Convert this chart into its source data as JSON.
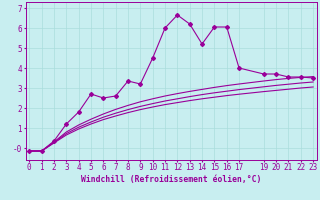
{
  "xlabel": "Windchill (Refroidissement éolien,°C)",
  "bg_color": "#c8eef0",
  "line_color": "#990099",
  "xlim": [
    -0.3,
    23.3
  ],
  "ylim": [
    -0.6,
    7.3
  ],
  "yticks": [
    0,
    1,
    2,
    3,
    4,
    5,
    6,
    7
  ],
  "ytick_labels": [
    "-0",
    "1",
    "2",
    "3",
    "4",
    "5",
    "6",
    "7"
  ],
  "xticks": [
    0,
    1,
    2,
    3,
    4,
    5,
    6,
    7,
    8,
    9,
    10,
    11,
    12,
    13,
    14,
    15,
    16,
    17,
    19,
    20,
    21,
    22,
    23
  ],
  "marked_line_x": [
    0,
    1,
    2,
    3,
    4,
    5,
    6,
    7,
    8,
    9,
    10,
    11,
    12,
    13,
    14,
    15,
    16,
    17,
    19,
    20,
    21,
    22,
    23
  ],
  "marked_line_y": [
    -0.15,
    -0.15,
    0.35,
    1.2,
    1.8,
    2.7,
    2.5,
    2.6,
    3.35,
    3.2,
    4.5,
    6.0,
    6.65,
    6.2,
    5.2,
    6.05,
    6.05,
    4.0,
    3.7,
    3.7,
    3.55,
    3.55,
    3.5
  ],
  "smooth_line1_x": [
    0,
    1,
    2,
    3,
    4,
    5,
    6,
    7,
    8,
    9,
    10,
    11,
    12,
    13,
    14,
    15,
    16,
    17,
    19,
    20,
    21,
    22,
    23
  ],
  "smooth_line1_y": [
    -0.15,
    -0.15,
    0.25,
    0.65,
    0.95,
    1.2,
    1.42,
    1.6,
    1.77,
    1.92,
    2.05,
    2.17,
    2.27,
    2.37,
    2.46,
    2.54,
    2.62,
    2.69,
    2.82,
    2.88,
    2.94,
    3.0,
    3.05
  ],
  "smooth_line2_x": [
    0,
    1,
    2,
    3,
    4,
    5,
    6,
    7,
    8,
    9,
    10,
    11,
    12,
    13,
    14,
    15,
    16,
    17,
    19,
    20,
    21,
    22,
    23
  ],
  "smooth_line2_y": [
    -0.15,
    -0.15,
    0.28,
    0.72,
    1.04,
    1.3,
    1.54,
    1.74,
    1.92,
    2.08,
    2.22,
    2.35,
    2.46,
    2.57,
    2.67,
    2.76,
    2.84,
    2.92,
    3.06,
    3.13,
    3.19,
    3.25,
    3.3
  ],
  "smooth_line3_x": [
    0,
    1,
    2,
    3,
    4,
    5,
    6,
    7,
    8,
    9,
    10,
    11,
    12,
    13,
    14,
    15,
    16,
    17,
    19,
    20,
    21,
    22,
    23
  ],
  "smooth_line3_y": [
    -0.15,
    -0.15,
    0.3,
    0.8,
    1.15,
    1.44,
    1.7,
    1.93,
    2.13,
    2.31,
    2.46,
    2.6,
    2.72,
    2.83,
    2.93,
    3.03,
    3.12,
    3.2,
    3.35,
    3.42,
    3.48,
    3.53,
    3.57
  ],
  "grid_color": "#aadddd",
  "font_color": "#990099",
  "font_size": 5.5,
  "xlabel_fontsize": 5.8
}
